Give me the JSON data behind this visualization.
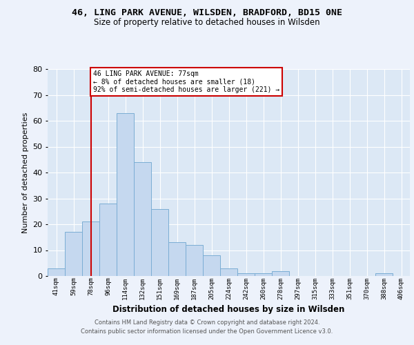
{
  "title1": "46, LING PARK AVENUE, WILSDEN, BRADFORD, BD15 0NE",
  "title2": "Size of property relative to detached houses in Wilsden",
  "xlabel": "Distribution of detached houses by size in Wilsden",
  "ylabel": "Number of detached properties",
  "categories": [
    "41sqm",
    "59sqm",
    "78sqm",
    "96sqm",
    "114sqm",
    "132sqm",
    "151sqm",
    "169sqm",
    "187sqm",
    "205sqm",
    "224sqm",
    "242sqm",
    "260sqm",
    "278sqm",
    "297sqm",
    "315sqm",
    "333sqm",
    "351sqm",
    "370sqm",
    "388sqm",
    "406sqm"
  ],
  "values": [
    3,
    17,
    21,
    28,
    63,
    44,
    26,
    13,
    12,
    8,
    3,
    1,
    1,
    2,
    0,
    0,
    0,
    0,
    0,
    1,
    0
  ],
  "bar_color": "#c5d8ef",
  "bar_edge_color": "#7aadd4",
  "vline_x_index": 2,
  "vline_color": "#cc0000",
  "annotation_text": "46 LING PARK AVENUE: 77sqm\n← 8% of detached houses are smaller (18)\n92% of semi-detached houses are larger (221) →",
  "annotation_box_color": "#ffffff",
  "annotation_box_edge": "#cc0000",
  "ylim": [
    0,
    80
  ],
  "yticks": [
    0,
    10,
    20,
    30,
    40,
    50,
    60,
    70,
    80
  ],
  "footer_line1": "Contains HM Land Registry data © Crown copyright and database right 2024.",
  "footer_line2": "Contains public sector information licensed under the Open Government Licence v3.0.",
  "background_color": "#edf2fb",
  "plot_bg_color": "#dce8f5",
  "grid_color": "#ffffff"
}
